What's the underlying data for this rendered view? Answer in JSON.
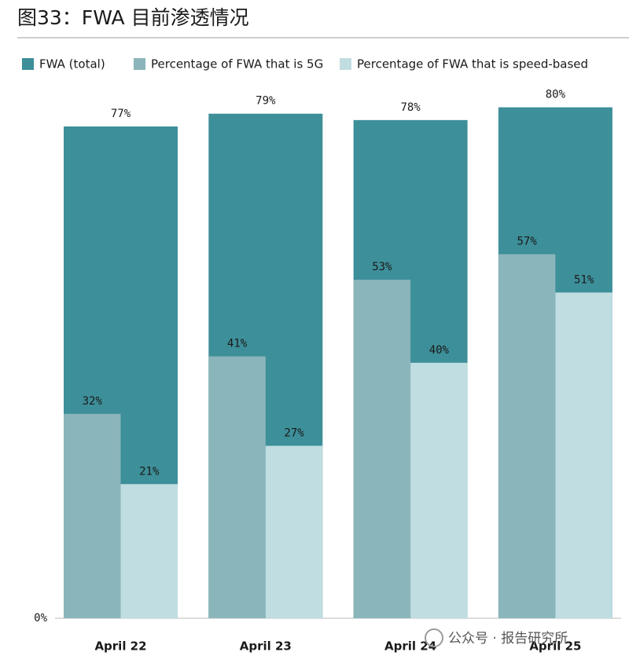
{
  "chart_data": {
    "type": "bar",
    "title": "图33：FWA 目前渗透情况",
    "categories": [
      "April 22",
      "April 23",
      "April 24",
      "April 25"
    ],
    "series": [
      {
        "name": "FWA (total)",
        "color": "#3d8f99",
        "values": [
          77,
          79,
          78,
          80
        ],
        "value_labels": [
          "77%",
          "79%",
          "78%",
          "80%"
        ]
      },
      {
        "name": "Percentage of FWA that is 5G",
        "color": "#8ab5bb",
        "values": [
          32,
          41,
          53,
          57
        ],
        "value_labels": [
          "32%",
          "41%",
          "53%",
          "57%"
        ]
      },
      {
        "name": "Percentage of FWA that is speed-based",
        "color": "#c0dde1",
        "values": [
          21,
          27,
          40,
          51
        ],
        "value_labels": [
          "21%",
          "27%",
          "40%",
          "51%"
        ]
      }
    ],
    "ylim": [
      0,
      100
    ],
    "yticks": [
      {
        "value": 0,
        "label": "0%"
      }
    ],
    "watermark": "公众号 · 报告研究所"
  }
}
